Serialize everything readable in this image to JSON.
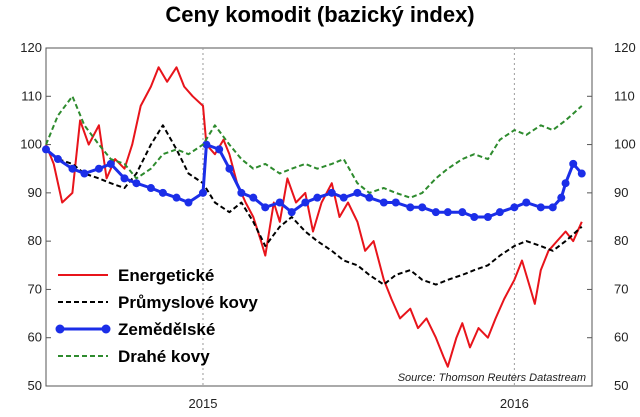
{
  "chart_data": {
    "type": "line",
    "title": "Ceny komodit (bazický index)",
    "source": "Source: Thomson Reuters Datastream",
    "ylim": [
      50,
      120
    ],
    "y_ticks": [
      "120",
      "110",
      "100",
      "90",
      "80",
      "70",
      "60",
      "50"
    ],
    "y_tick_values": [
      120,
      110,
      100,
      90,
      80,
      70,
      60,
      50
    ],
    "xlim": [
      "2014-07-01",
      "2016-04-01"
    ],
    "x_ticks": [
      {
        "label": "2015",
        "date": "2015-01-01"
      },
      {
        "label": "2016",
        "date": "2016-01-01"
      }
    ],
    "grid": "vertical dashed at years",
    "legend_position": "bottom-left",
    "series": [
      {
        "name": "Energetické",
        "color": "#e8141b",
        "style": "solid",
        "points": [
          [
            "2014-07-01",
            100
          ],
          [
            "2014-07-10",
            96
          ],
          [
            "2014-07-20",
            88
          ],
          [
            "2014-08-01",
            90
          ],
          [
            "2014-08-10",
            105
          ],
          [
            "2014-08-20",
            100
          ],
          [
            "2014-09-01",
            104
          ],
          [
            "2014-09-10",
            93
          ],
          [
            "2014-09-20",
            97
          ],
          [
            "2014-10-01",
            95
          ],
          [
            "2014-10-10",
            100
          ],
          [
            "2014-10-20",
            108
          ],
          [
            "2014-11-01",
            112
          ],
          [
            "2014-11-10",
            116
          ],
          [
            "2014-11-20",
            113
          ],
          [
            "2014-12-01",
            116
          ],
          [
            "2014-12-10",
            112
          ],
          [
            "2014-12-20",
            110
          ],
          [
            "2015-01-01",
            108
          ],
          [
            "2015-01-05",
            100
          ],
          [
            "2015-01-15",
            98
          ],
          [
            "2015-01-25",
            101
          ],
          [
            "2015-02-01",
            98
          ],
          [
            "2015-02-10",
            92
          ],
          [
            "2015-02-20",
            88
          ],
          [
            "2015-03-01",
            85
          ],
          [
            "2015-03-10",
            80
          ],
          [
            "2015-03-15",
            77
          ],
          [
            "2015-03-25",
            88
          ],
          [
            "2015-04-01",
            84
          ],
          [
            "2015-04-10",
            93
          ],
          [
            "2015-04-20",
            88
          ],
          [
            "2015-05-01",
            90
          ],
          [
            "2015-05-10",
            82
          ],
          [
            "2015-05-20",
            88
          ],
          [
            "2015-06-01",
            92
          ],
          [
            "2015-06-10",
            85
          ],
          [
            "2015-06-20",
            88
          ],
          [
            "2015-07-01",
            84
          ],
          [
            "2015-07-10",
            78
          ],
          [
            "2015-07-20",
            80
          ],
          [
            "2015-08-01",
            72
          ],
          [
            "2015-08-10",
            68
          ],
          [
            "2015-08-20",
            64
          ],
          [
            "2015-09-01",
            66
          ],
          [
            "2015-09-10",
            62
          ],
          [
            "2015-09-20",
            64
          ],
          [
            "2015-10-01",
            60
          ],
          [
            "2015-10-10",
            56
          ],
          [
            "2015-10-15",
            54
          ],
          [
            "2015-10-25",
            60
          ],
          [
            "2015-11-01",
            63
          ],
          [
            "2015-11-10",
            58
          ],
          [
            "2015-11-20",
            62
          ],
          [
            "2015-12-01",
            60
          ],
          [
            "2015-12-10",
            64
          ],
          [
            "2015-12-20",
            68
          ],
          [
            "2016-01-01",
            72
          ],
          [
            "2016-01-10",
            76
          ],
          [
            "2016-01-20",
            70
          ],
          [
            "2016-01-25",
            67
          ],
          [
            "2016-02-01",
            74
          ],
          [
            "2016-02-10",
            78
          ],
          [
            "2016-02-20",
            80
          ],
          [
            "2016-03-01",
            82
          ],
          [
            "2016-03-10",
            80
          ],
          [
            "2016-03-20",
            84
          ]
        ]
      },
      {
        "name": "Průmyslové kovy",
        "color": "#000000",
        "style": "dashed",
        "points": [
          [
            "2014-07-01",
            99
          ],
          [
            "2014-07-15",
            97
          ],
          [
            "2014-08-01",
            96
          ],
          [
            "2014-08-15",
            94
          ],
          [
            "2014-09-01",
            93
          ],
          [
            "2014-09-15",
            92
          ],
          [
            "2014-10-01",
            91
          ],
          [
            "2014-10-15",
            94
          ],
          [
            "2014-11-01",
            100
          ],
          [
            "2014-11-15",
            104
          ],
          [
            "2014-12-01",
            99
          ],
          [
            "2014-12-15",
            94
          ],
          [
            "2015-01-01",
            92
          ],
          [
            "2015-01-15",
            88
          ],
          [
            "2015-02-01",
            86
          ],
          [
            "2015-02-15",
            88
          ],
          [
            "2015-03-01",
            84
          ],
          [
            "2015-03-15",
            79
          ],
          [
            "2015-04-01",
            83
          ],
          [
            "2015-04-15",
            85
          ],
          [
            "2015-05-01",
            82
          ],
          [
            "2015-05-15",
            80
          ],
          [
            "2015-06-01",
            78
          ],
          [
            "2015-06-15",
            76
          ],
          [
            "2015-07-01",
            75
          ],
          [
            "2015-07-15",
            73
          ],
          [
            "2015-08-01",
            71
          ],
          [
            "2015-08-15",
            73
          ],
          [
            "2015-09-01",
            74
          ],
          [
            "2015-09-15",
            72
          ],
          [
            "2015-10-01",
            71
          ],
          [
            "2015-10-15",
            72
          ],
          [
            "2015-11-01",
            73
          ],
          [
            "2015-11-15",
            74
          ],
          [
            "2015-12-01",
            75
          ],
          [
            "2015-12-15",
            77
          ],
          [
            "2016-01-01",
            79
          ],
          [
            "2016-01-15",
            80
          ],
          [
            "2016-02-01",
            79
          ],
          [
            "2016-02-15",
            78
          ],
          [
            "2016-03-01",
            80
          ],
          [
            "2016-03-20",
            83
          ]
        ]
      },
      {
        "name": "Zemědělské",
        "color": "#1b2ee8",
        "style": "solid-markers",
        "points": [
          [
            "2014-07-01",
            99
          ],
          [
            "2014-07-15",
            97
          ],
          [
            "2014-08-01",
            95
          ],
          [
            "2014-08-15",
            94
          ],
          [
            "2014-09-01",
            95
          ],
          [
            "2014-09-15",
            96
          ],
          [
            "2014-10-01",
            93
          ],
          [
            "2014-10-15",
            92
          ],
          [
            "2014-11-01",
            91
          ],
          [
            "2014-11-15",
            90
          ],
          [
            "2014-12-01",
            89
          ],
          [
            "2014-12-15",
            88
          ],
          [
            "2015-01-01",
            90
          ],
          [
            "2015-01-05",
            100
          ],
          [
            "2015-01-20",
            99
          ],
          [
            "2015-02-01",
            95
          ],
          [
            "2015-02-15",
            90
          ],
          [
            "2015-03-01",
            89
          ],
          [
            "2015-03-15",
            87
          ],
          [
            "2015-04-01",
            88
          ],
          [
            "2015-04-15",
            86
          ],
          [
            "2015-05-01",
            88
          ],
          [
            "2015-05-15",
            89
          ],
          [
            "2015-06-01",
            90
          ],
          [
            "2015-06-15",
            89
          ],
          [
            "2015-07-01",
            90
          ],
          [
            "2015-07-15",
            89
          ],
          [
            "2015-08-01",
            88
          ],
          [
            "2015-08-15",
            88
          ],
          [
            "2015-09-01",
            87
          ],
          [
            "2015-09-15",
            87
          ],
          [
            "2015-10-01",
            86
          ],
          [
            "2015-10-15",
            86
          ],
          [
            "2015-11-01",
            86
          ],
          [
            "2015-11-15",
            85
          ],
          [
            "2015-12-01",
            85
          ],
          [
            "2015-12-15",
            86
          ],
          [
            "2016-01-01",
            87
          ],
          [
            "2016-01-15",
            88
          ],
          [
            "2016-02-01",
            87
          ],
          [
            "2016-02-15",
            87
          ],
          [
            "2016-02-25",
            89
          ],
          [
            "2016-03-01",
            92
          ],
          [
            "2016-03-10",
            96
          ],
          [
            "2016-03-20",
            94
          ]
        ]
      },
      {
        "name": "Drahé kovy",
        "color": "#2e8b2e",
        "style": "dashed",
        "points": [
          [
            "2014-07-01",
            100
          ],
          [
            "2014-07-15",
            106
          ],
          [
            "2014-08-01",
            110
          ],
          [
            "2014-08-15",
            104
          ],
          [
            "2014-09-01",
            100
          ],
          [
            "2014-09-15",
            97
          ],
          [
            "2014-10-01",
            96
          ],
          [
            "2014-10-15",
            93
          ],
          [
            "2014-11-01",
            95
          ],
          [
            "2014-11-15",
            98
          ],
          [
            "2014-12-01",
            99
          ],
          [
            "2014-12-15",
            98
          ],
          [
            "2015-01-01",
            100
          ],
          [
            "2015-01-15",
            104
          ],
          [
            "2015-02-01",
            100
          ],
          [
            "2015-02-15",
            97
          ],
          [
            "2015-03-01",
            95
          ],
          [
            "2015-03-15",
            96
          ],
          [
            "2015-04-01",
            94
          ],
          [
            "2015-04-15",
            95
          ],
          [
            "2015-05-01",
            96
          ],
          [
            "2015-05-15",
            95
          ],
          [
            "2015-06-01",
            96
          ],
          [
            "2015-06-15",
            97
          ],
          [
            "2015-07-01",
            92
          ],
          [
            "2015-07-15",
            90
          ],
          [
            "2015-08-01",
            91
          ],
          [
            "2015-08-15",
            90
          ],
          [
            "2015-09-01",
            89
          ],
          [
            "2015-09-15",
            90
          ],
          [
            "2015-10-01",
            93
          ],
          [
            "2015-10-15",
            95
          ],
          [
            "2015-11-01",
            97
          ],
          [
            "2015-11-15",
            98
          ],
          [
            "2015-12-01",
            97
          ],
          [
            "2015-12-15",
            101
          ],
          [
            "2016-01-01",
            103
          ],
          [
            "2016-01-15",
            102
          ],
          [
            "2016-02-01",
            104
          ],
          [
            "2016-02-15",
            103
          ],
          [
            "2016-03-01",
            105
          ],
          [
            "2016-03-20",
            108
          ]
        ]
      }
    ]
  }
}
